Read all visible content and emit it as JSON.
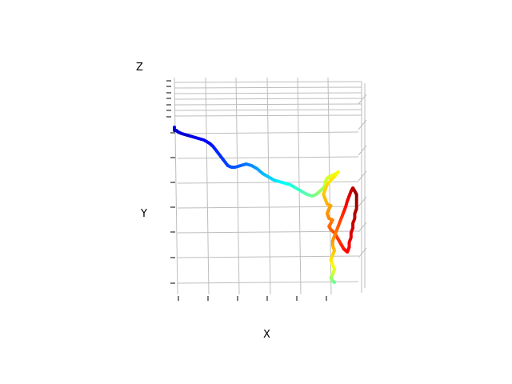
{
  "chart_data": {
    "type": "scatter",
    "projection": "3d",
    "xlabel": "X",
    "ylabel": "Y",
    "zlabel": "Z",
    "colormap": "jet",
    "color_by": "sequence",
    "grid": true,
    "legend": "none",
    "points": [
      [
        0.0,
        0.02,
        0.12
      ],
      [
        0.0,
        0.04,
        0.08
      ],
      [
        0.01,
        0.04,
        0.05
      ],
      [
        0.02,
        0.05,
        0.1
      ],
      [
        0.04,
        0.06,
        0.09
      ],
      [
        0.07,
        0.07,
        0.08
      ],
      [
        0.1,
        0.08,
        0.1
      ],
      [
        0.13,
        0.09,
        0.11
      ],
      [
        0.16,
        0.1,
        0.12
      ],
      [
        0.19,
        0.12,
        0.13
      ],
      [
        0.21,
        0.14,
        0.15
      ],
      [
        0.23,
        0.17,
        0.16
      ],
      [
        0.25,
        0.2,
        0.17
      ],
      [
        0.27,
        0.23,
        0.18
      ],
      [
        0.29,
        0.26,
        0.19
      ],
      [
        0.31,
        0.27,
        0.2
      ],
      [
        0.33,
        0.27,
        0.21
      ],
      [
        0.36,
        0.26,
        0.22
      ],
      [
        0.39,
        0.25,
        0.24
      ],
      [
        0.42,
        0.26,
        0.26
      ],
      [
        0.45,
        0.28,
        0.28
      ],
      [
        0.48,
        0.31,
        0.3
      ],
      [
        0.51,
        0.33,
        0.32
      ],
      [
        0.54,
        0.35,
        0.34
      ],
      [
        0.57,
        0.36,
        0.36
      ],
      [
        0.6,
        0.37,
        0.38
      ],
      [
        0.63,
        0.38,
        0.4
      ],
      [
        0.66,
        0.4,
        0.42
      ],
      [
        0.69,
        0.42,
        0.44
      ],
      [
        0.72,
        0.44,
        0.46
      ],
      [
        0.75,
        0.45,
        0.48
      ],
      [
        0.77,
        0.44,
        0.5
      ],
      [
        0.79,
        0.42,
        0.52
      ],
      [
        0.81,
        0.4,
        0.53
      ],
      [
        0.82,
        0.38,
        0.55
      ],
      [
        0.82,
        0.36,
        0.57
      ],
      [
        0.83,
        0.34,
        0.58
      ],
      [
        0.84,
        0.33,
        0.59
      ],
      [
        0.86,
        0.32,
        0.6
      ],
      [
        0.88,
        0.31,
        0.61
      ],
      [
        0.89,
        0.3,
        0.62
      ],
      [
        0.88,
        0.31,
        0.63
      ],
      [
        0.87,
        0.33,
        0.64
      ],
      [
        0.85,
        0.35,
        0.65
      ],
      [
        0.83,
        0.38,
        0.66
      ],
      [
        0.82,
        0.41,
        0.67
      ],
      [
        0.81,
        0.44,
        0.68
      ],
      [
        0.82,
        0.47,
        0.69
      ],
      [
        0.83,
        0.5,
        0.7
      ],
      [
        0.85,
        0.51,
        0.71
      ],
      [
        0.84,
        0.53,
        0.72
      ],
      [
        0.83,
        0.56,
        0.73
      ],
      [
        0.84,
        0.59,
        0.74
      ],
      [
        0.86,
        0.6,
        0.75
      ],
      [
        0.85,
        0.62,
        0.76
      ],
      [
        0.84,
        0.64,
        0.77
      ],
      [
        0.85,
        0.66,
        0.78
      ],
      [
        0.87,
        0.68,
        0.8
      ],
      [
        0.88,
        0.7,
        0.81
      ],
      [
        0.89,
        0.72,
        0.82
      ],
      [
        0.9,
        0.74,
        0.83
      ],
      [
        0.91,
        0.76,
        0.84
      ],
      [
        0.92,
        0.78,
        0.85
      ],
      [
        0.93,
        0.79,
        0.86
      ],
      [
        0.94,
        0.8,
        0.87
      ],
      [
        0.95,
        0.77,
        0.88
      ],
      [
        0.95,
        0.74,
        0.89
      ],
      [
        0.96,
        0.71,
        0.9
      ],
      [
        0.96,
        0.68,
        0.91
      ],
      [
        0.97,
        0.65,
        0.92
      ],
      [
        0.97,
        0.62,
        0.93
      ],
      [
        0.98,
        0.59,
        0.94
      ],
      [
        0.98,
        0.56,
        0.95
      ],
      [
        0.99,
        0.53,
        0.96
      ],
      [
        0.99,
        0.5,
        0.97
      ],
      [
        0.99,
        0.47,
        0.98
      ],
      [
        0.99,
        0.44,
        0.99
      ],
      [
        0.98,
        0.42,
        0.97
      ],
      [
        0.97,
        0.4,
        0.95
      ],
      [
        0.96,
        0.42,
        0.93
      ],
      [
        0.95,
        0.45,
        0.91
      ],
      [
        0.94,
        0.48,
        0.89
      ],
      [
        0.93,
        0.52,
        0.87
      ],
      [
        0.92,
        0.55,
        0.85
      ],
      [
        0.91,
        0.58,
        0.83
      ],
      [
        0.9,
        0.61,
        0.81
      ],
      [
        0.89,
        0.64,
        0.79
      ],
      [
        0.88,
        0.67,
        0.77
      ],
      [
        0.87,
        0.7,
        0.75
      ],
      [
        0.86,
        0.73,
        0.73
      ],
      [
        0.86,
        0.76,
        0.71
      ],
      [
        0.87,
        0.79,
        0.69
      ],
      [
        0.86,
        0.82,
        0.67
      ],
      [
        0.85,
        0.85,
        0.65
      ],
      [
        0.86,
        0.88,
        0.63
      ],
      [
        0.87,
        0.91,
        0.6
      ],
      [
        0.86,
        0.94,
        0.57
      ],
      [
        0.85,
        0.96,
        0.54
      ],
      [
        0.86,
        0.98,
        0.51
      ],
      [
        0.87,
        0.99,
        0.48
      ]
    ]
  }
}
